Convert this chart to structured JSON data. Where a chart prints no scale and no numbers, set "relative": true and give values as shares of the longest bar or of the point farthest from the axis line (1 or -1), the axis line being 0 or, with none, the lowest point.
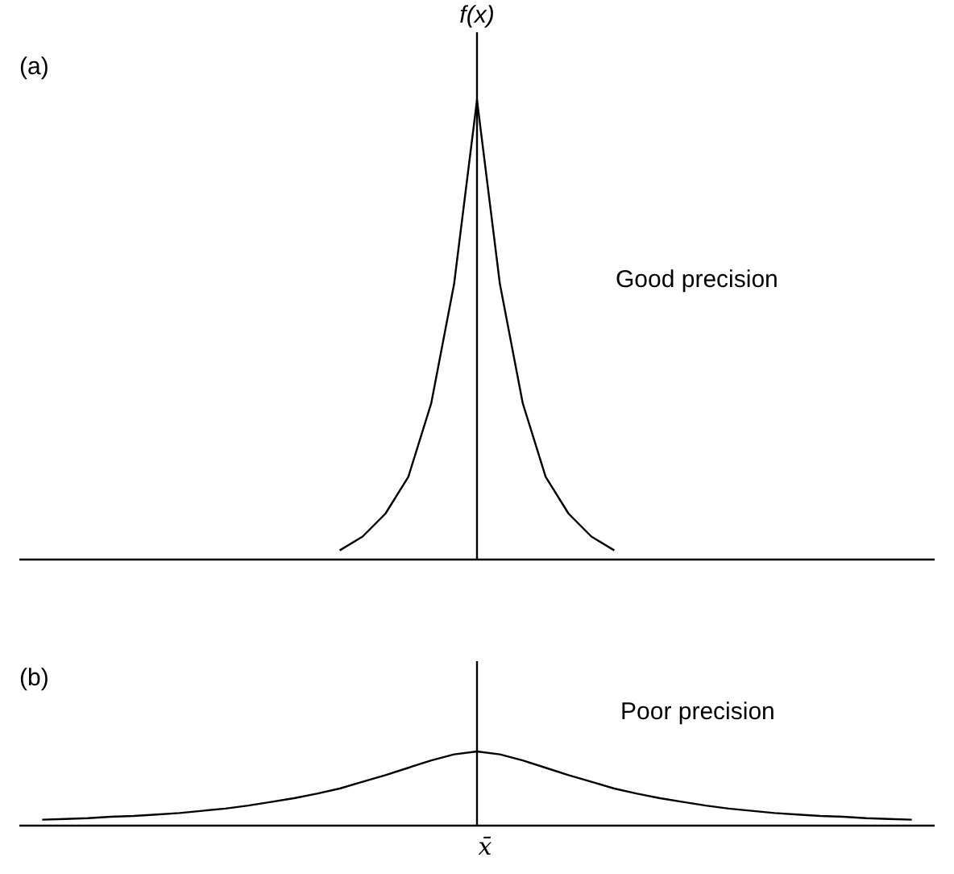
{
  "chart_data": [
    {
      "type": "line",
      "title": "(a)",
      "ylabel": "f(x)",
      "relative": true,
      "annotations": [
        "Good precision"
      ],
      "marker": "none",
      "line_style": "solid",
      "categories": [
        null,
        null,
        null,
        null,
        null,
        null,
        null,
        null,
        null,
        null,
        null,
        null,
        null,
        null,
        null,
        null,
        null,
        null,
        null,
        null,
        null,
        null,
        null,
        null,
        null,
        null,
        null,
        null,
        null,
        null,
        null,
        null,
        null,
        null,
        null,
        null,
        null,
        null,
        null,
        null,
        null
      ],
      "series": [
        {
          "color": "#000000",
          "values": [
            null,
            null,
            null,
            null,
            null,
            null,
            null,
            null,
            null,
            null,
            null,
            null,
            null,
            null,
            0.02,
            0.05,
            0.1,
            0.18,
            0.34,
            0.6,
            1,
            0.6,
            0.34,
            0.18,
            0.1,
            0.05,
            0.02,
            null,
            null,
            null,
            null,
            null,
            null,
            null,
            null,
            null,
            null,
            null,
            null,
            null,
            null
          ]
        }
      ]
    },
    {
      "type": "line",
      "title": "(b)",
      "relative": true,
      "annotations": [
        "Poor precision",
        "x̄"
      ],
      "marker": "none",
      "line_style": "solid",
      "categories": [
        null,
        null,
        null,
        null,
        null,
        null,
        null,
        null,
        null,
        null,
        null,
        null,
        null,
        null,
        null,
        null,
        null,
        null,
        null,
        null,
        null,
        null,
        null,
        null,
        null,
        null,
        null,
        null,
        null,
        null,
        null,
        null,
        null,
        null,
        null,
        null,
        null,
        null,
        null,
        null,
        null
      ],
      "series": [
        {
          "color": "#000000",
          "values": [
            null,
            0.08,
            0.09,
            0.1,
            0.12,
            0.13,
            0.15,
            0.17,
            0.2,
            0.23,
            0.27,
            0.32,
            0.37,
            0.43,
            0.5,
            0.59,
            0.68,
            0.78,
            0.88,
            0.96,
            1,
            0.96,
            0.88,
            0.78,
            0.68,
            0.59,
            0.5,
            0.43,
            0.37,
            0.32,
            0.27,
            0.23,
            0.2,
            0.17,
            0.15,
            0.13,
            0.12,
            0.1,
            0.09,
            0.08,
            null
          ]
        }
      ]
    }
  ]
}
